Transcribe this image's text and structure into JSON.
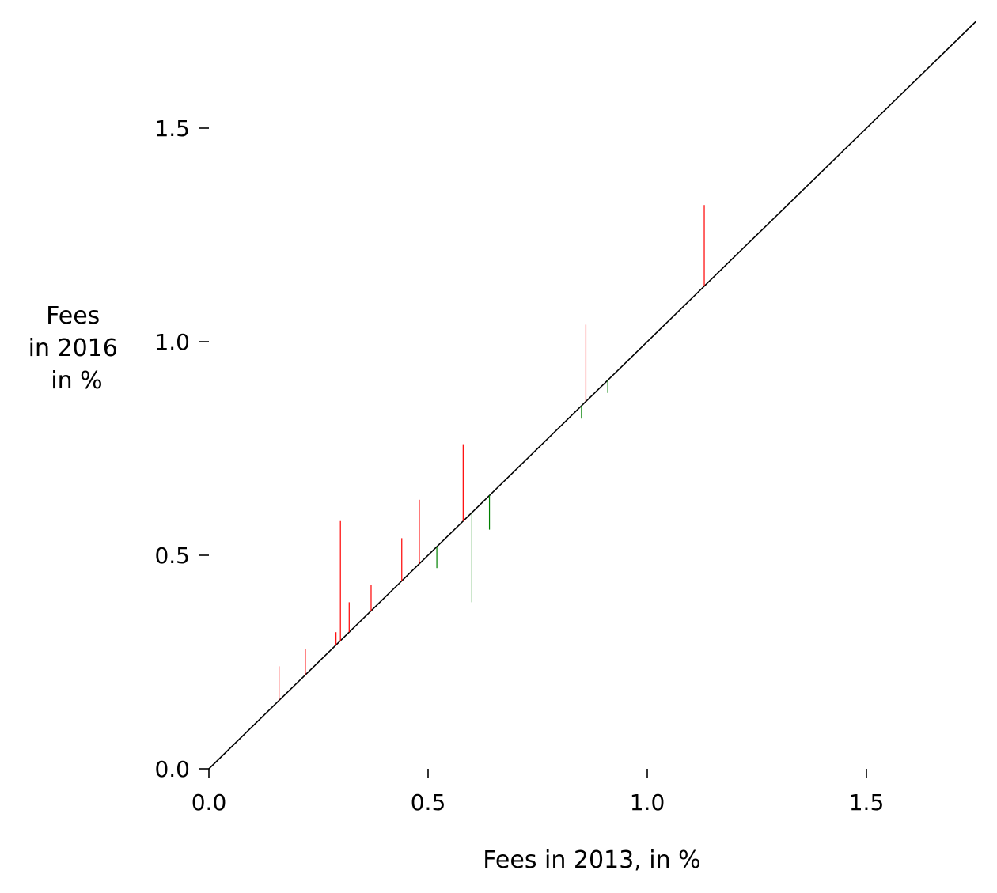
{
  "chart_data": {
    "type": "vertical-segment",
    "title": "",
    "xlabel": "Fees in 2013, in %",
    "ylabel_lines": [
      "Fees",
      "in 2016",
      "in %"
    ],
    "xlim": [
      0,
      1.75
    ],
    "ylim": [
      0,
      1.75
    ],
    "x_ticks": [
      0.0,
      0.5,
      1.0,
      1.5
    ],
    "y_ticks": [
      0.0,
      0.5,
      1.0,
      1.5
    ],
    "x_tick_labels": [
      "0.0",
      "0.5",
      "1.0",
      "1.5"
    ],
    "y_tick_labels": [
      "0.0",
      "0.5",
      "1.0",
      "1.5"
    ],
    "grid": false,
    "reference_line": "y = x",
    "colors": {
      "increase": "#ff0000",
      "decrease": "#008000",
      "reference": "#000000"
    },
    "segments": [
      {
        "x": 0.16,
        "y2013": 0.16,
        "y2016": 0.24
      },
      {
        "x": 0.22,
        "y2013": 0.22,
        "y2016": 0.28
      },
      {
        "x": 0.29,
        "y2013": 0.29,
        "y2016": 0.32
      },
      {
        "x": 0.3,
        "y2013": 0.3,
        "y2016": 0.58
      },
      {
        "x": 0.32,
        "y2013": 0.32,
        "y2016": 0.39
      },
      {
        "x": 0.37,
        "y2013": 0.37,
        "y2016": 0.43
      },
      {
        "x": 0.44,
        "y2013": 0.44,
        "y2016": 0.54
      },
      {
        "x": 0.48,
        "y2013": 0.48,
        "y2016": 0.63
      },
      {
        "x": 0.52,
        "y2013": 0.52,
        "y2016": 0.47
      },
      {
        "x": 0.58,
        "y2013": 0.58,
        "y2016": 0.76
      },
      {
        "x": 0.6,
        "y2013": 0.6,
        "y2016": 0.39
      },
      {
        "x": 0.64,
        "y2013": 0.64,
        "y2016": 0.56
      },
      {
        "x": 0.85,
        "y2013": 0.85,
        "y2016": 0.82
      },
      {
        "x": 0.86,
        "y2013": 0.86,
        "y2016": 1.04
      },
      {
        "x": 0.91,
        "y2013": 0.91,
        "y2016": 0.88
      },
      {
        "x": 1.13,
        "y2013": 1.13,
        "y2016": 1.32
      }
    ]
  }
}
